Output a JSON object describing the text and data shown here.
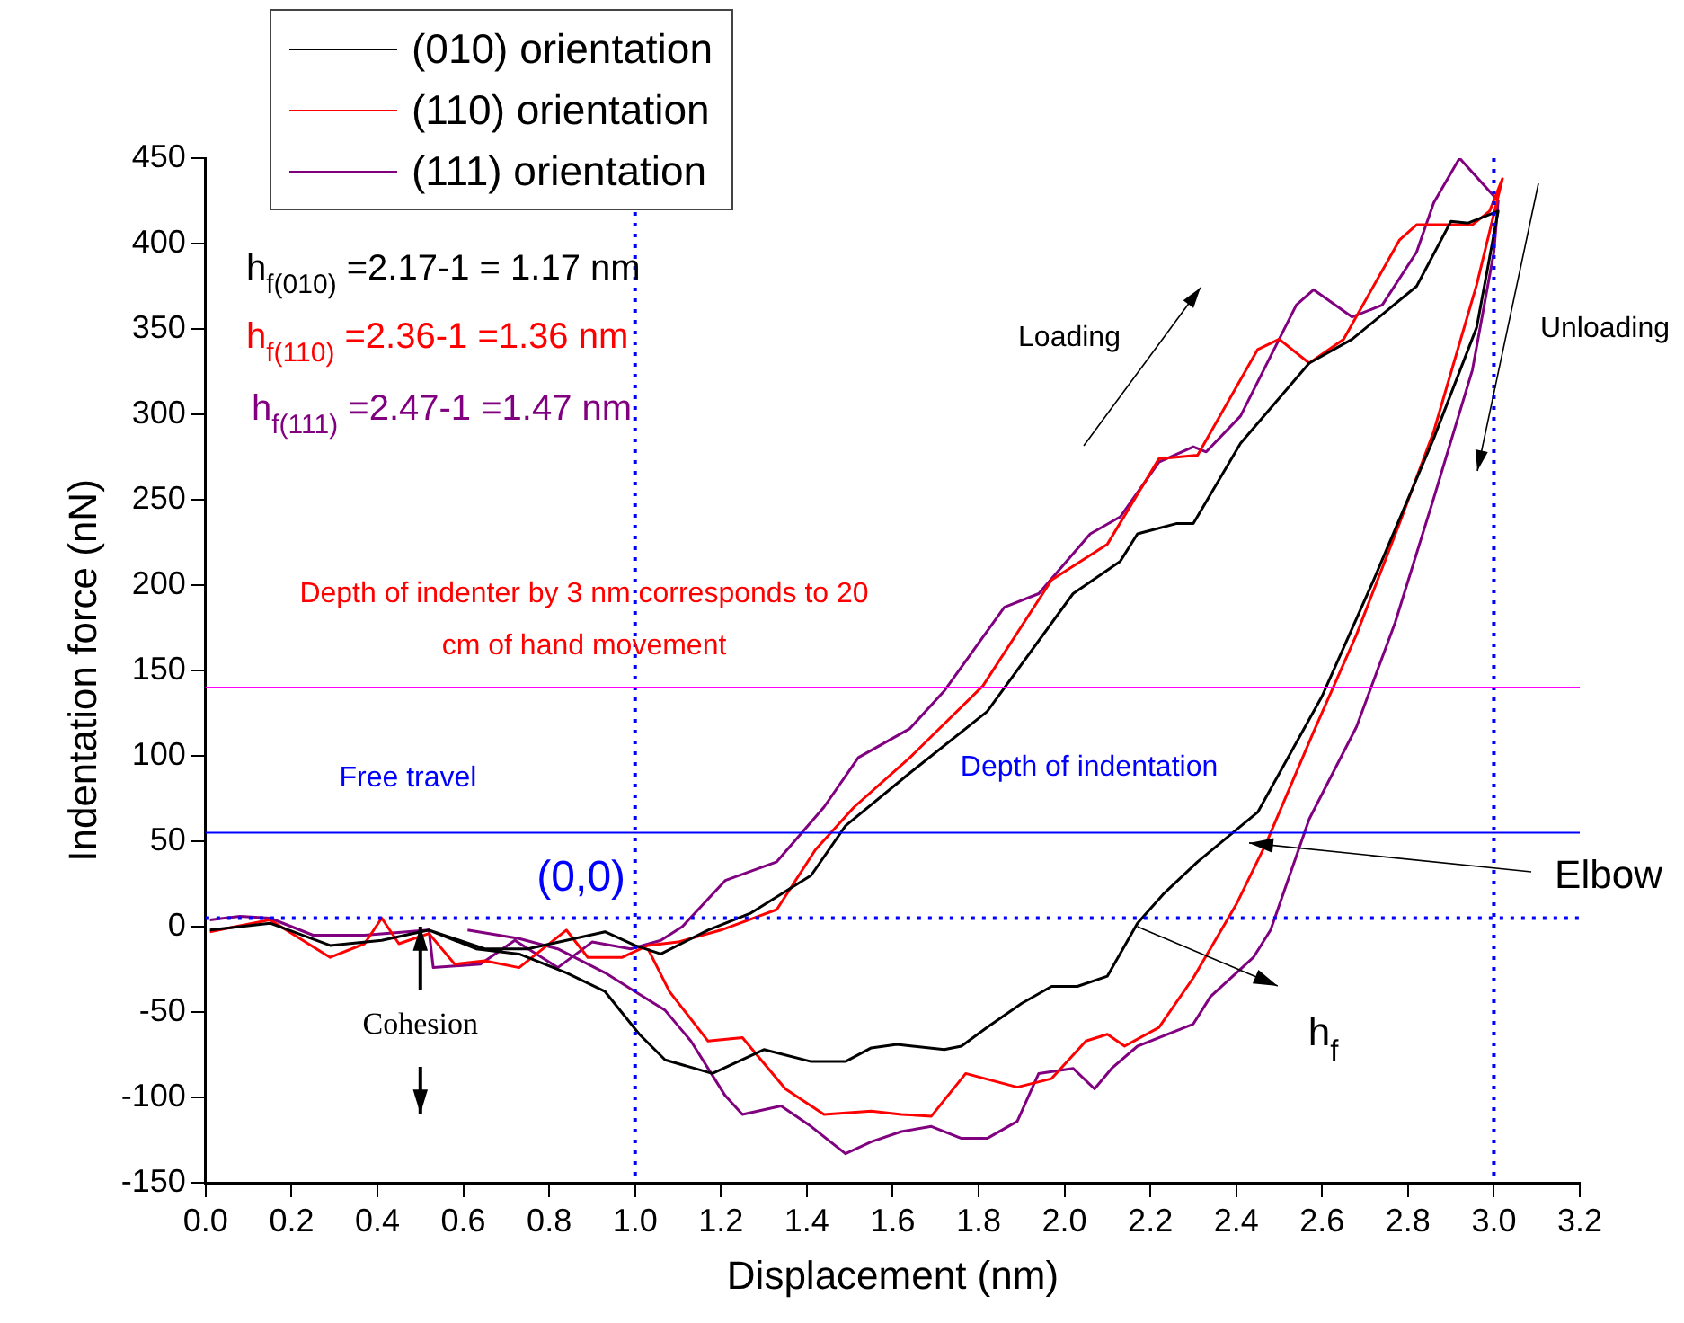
{
  "chart_data": {
    "type": "line",
    "xlabel": "Displacement (nm)",
    "ylabel": "Indentation force (nN)",
    "xlim": [
      0,
      3.2
    ],
    "xticks": [
      {
        "value": 0,
        "label": "0.0"
      },
      0.2,
      0.4,
      0.6,
      0.8,
      {
        "value": 1,
        "label": "1.0"
      },
      1.2,
      1.4,
      1.6,
      1.8,
      {
        "value": 2,
        "label": "2.0"
      },
      2.2,
      2.4,
      2.6,
      2.8,
      {
        "value": 3,
        "label": "3.0"
      },
      3.2
    ],
    "ylim": [
      -150,
      450
    ],
    "yticks": [
      -150,
      -100,
      -50,
      0,
      50,
      100,
      150,
      200,
      250,
      300,
      350,
      400,
      450
    ],
    "grid": false,
    "legend": "top left",
    "marker": "none",
    "line_style": "solid",
    "series": [
      {
        "name": "(010) orientation",
        "color": "#000000",
        "x": [
          0.01,
          0.15,
          0.29,
          0.41,
          0.52,
          0.65,
          0.75,
          0.93,
          1.0,
          1.06,
          1.17,
          1.27,
          1.41,
          1.49,
          1.64,
          1.82,
          2.02,
          2.13,
          2.17,
          2.26,
          2.3,
          2.41,
          2.57,
          2.67,
          2.82,
          2.9,
          2.94,
          3.01,
          2.96,
          2.86,
          2.72,
          2.6,
          2.45,
          2.31,
          2.23,
          2.17,
          2.1,
          2.03,
          1.97,
          1.9,
          1.82,
          1.76,
          1.72,
          1.61,
          1.55,
          1.49,
          1.41,
          1.3,
          1.18,
          1.07,
          1.01,
          0.93,
          0.84,
          0.73,
          0.63,
          0.52
        ],
        "values": [
          -2,
          2,
          -11,
          -8,
          -2,
          -13,
          -13,
          -3,
          -11,
          -16,
          -2,
          8,
          30,
          59,
          90,
          126,
          195,
          214,
          230,
          236,
          236,
          283,
          330,
          344,
          375,
          413,
          412,
          419,
          351,
          286,
          203,
          135,
          67,
          38,
          19,
          2,
          -29,
          -35,
          -35,
          -45,
          -59,
          -70,
          -72,
          -69,
          -71,
          -79,
          -79,
          -72,
          -86,
          -78,
          -63,
          -38,
          -27,
          -16,
          -13,
          -2
        ]
      },
      {
        "name": "(110) orientation",
        "color": "#ff0000",
        "x": [
          0.01,
          0.15,
          0.29,
          0.37,
          0.41,
          0.45,
          0.52,
          0.58,
          0.65,
          0.73,
          0.84,
          0.89,
          0.97,
          1.03,
          1.1,
          1.2,
          1.33,
          1.42,
          1.51,
          1.64,
          1.81,
          1.97,
          2.1,
          2.22,
          2.31,
          2.45,
          2.5,
          2.57,
          2.65,
          2.78,
          2.82,
          2.95,
          2.99,
          3.02,
          2.96,
          2.86,
          2.78,
          2.68,
          2.58,
          2.47,
          2.4,
          2.3,
          2.22,
          2.14,
          2.1,
          2.05,
          1.97,
          1.89,
          1.77,
          1.69,
          1.62,
          1.55,
          1.44,
          1.35,
          1.25,
          1.17,
          1.08,
          1.03
        ],
        "values": [
          -3,
          4,
          -18,
          -10,
          5,
          -10,
          -4,
          -22,
          -20,
          -24,
          -2,
          -18,
          -18,
          -11,
          -9,
          -2,
          10,
          45,
          70,
          99,
          141,
          203,
          224,
          274,
          276,
          338,
          344,
          330,
          344,
          402,
          411,
          411,
          419,
          438,
          376,
          290,
          236,
          171,
          114,
          49,
          13,
          -30,
          -59,
          -70,
          -63,
          -67,
          -89,
          -94,
          -86,
          -111,
          -110,
          -108,
          -110,
          -95,
          -65,
          -67,
          -38,
          -13
        ]
      },
      {
        "name": "(111) orientation",
        "color": "#800080",
        "x": [
          0.01,
          0.08,
          0.15,
          0.25,
          0.37,
          0.52,
          0.53,
          0.64,
          0.72,
          0.82,
          0.9,
          0.99,
          1.06,
          1.11,
          1.21,
          1.33,
          1.44,
          1.52,
          1.64,
          1.72,
          1.86,
          1.94,
          2.06,
          2.13,
          2.22,
          2.3,
          2.33,
          2.41,
          2.54,
          2.58,
          2.67,
          2.74,
          2.82,
          2.86,
          2.92,
          3.01,
          3.0,
          2.95,
          2.86,
          2.77,
          2.68,
          2.57,
          2.48,
          2.44,
          2.34,
          2.3,
          2.17,
          2.11,
          2.07,
          2.02,
          1.94,
          1.89,
          1.82,
          1.76,
          1.69,
          1.62,
          1.55,
          1.49,
          1.41,
          1.34,
          1.25,
          1.21,
          1.13,
          1.07,
          1.0,
          0.93,
          0.82,
          0.73,
          0.61
        ],
        "values": [
          4,
          6,
          5,
          -5,
          -5,
          -2,
          -24,
          -22,
          -8,
          -24,
          -9,
          -13,
          -8,
          0,
          27,
          38,
          70,
          99,
          116,
          138,
          187,
          195,
          230,
          240,
          272,
          281,
          278,
          299,
          364,
          373,
          357,
          364,
          395,
          424,
          450,
          425,
          395,
          326,
          251,
          178,
          117,
          63,
          -2,
          -18,
          -41,
          -57,
          -70,
          -83,
          -95,
          -83,
          -86,
          -114,
          -124,
          -124,
          -117,
          -120,
          -126,
          -133,
          -117,
          -105,
          -110,
          -99,
          -67,
          -49,
          -38,
          -27,
          -13,
          -7,
          -2
        ]
      }
    ],
    "ref_lines": [
      {
        "axis": "x",
        "value": 1,
        "color": "#0000ff",
        "line_style": "dotted"
      },
      {
        "axis": "x",
        "value": 3,
        "color": "#0000ff",
        "line_style": "dotted"
      },
      {
        "axis": "y",
        "value": 5,
        "color": "#0000ff",
        "line_style": "dotted"
      },
      {
        "axis": "y",
        "value": 55,
        "color": "#0000ff",
        "line_style": "solid"
      },
      {
        "axis": "y",
        "value": 140,
        "color": "#ff00ff",
        "line_style": "solid",
        "label": "Depth of indenter by 3 nm corresponds to 20 cm of hand movement"
      }
    ],
    "annotations": [
      "h$_{f(010)}$ =2.17-1 = 1.17 nm",
      "h$_{f(110)}$ =2.36-1 =1.36 nm",
      "h$_{f(111)}$ =2.47-1 =1.47 nm",
      "Loading",
      "Unloading",
      "Free travel",
      "Depth of indentation",
      {
        "text": "(0,0)",
        "x": 1.0,
        "y": 5
      },
      {
        "text": "Cohesion",
        "x": 0.5,
        "y": 0
      },
      {
        "text": "Elbow",
        "x": 2.43,
        "y": 49
      },
      {
        "text": "h$_{f}$",
        "x": 2.17,
        "y": 0
      }
    ]
  }
}
